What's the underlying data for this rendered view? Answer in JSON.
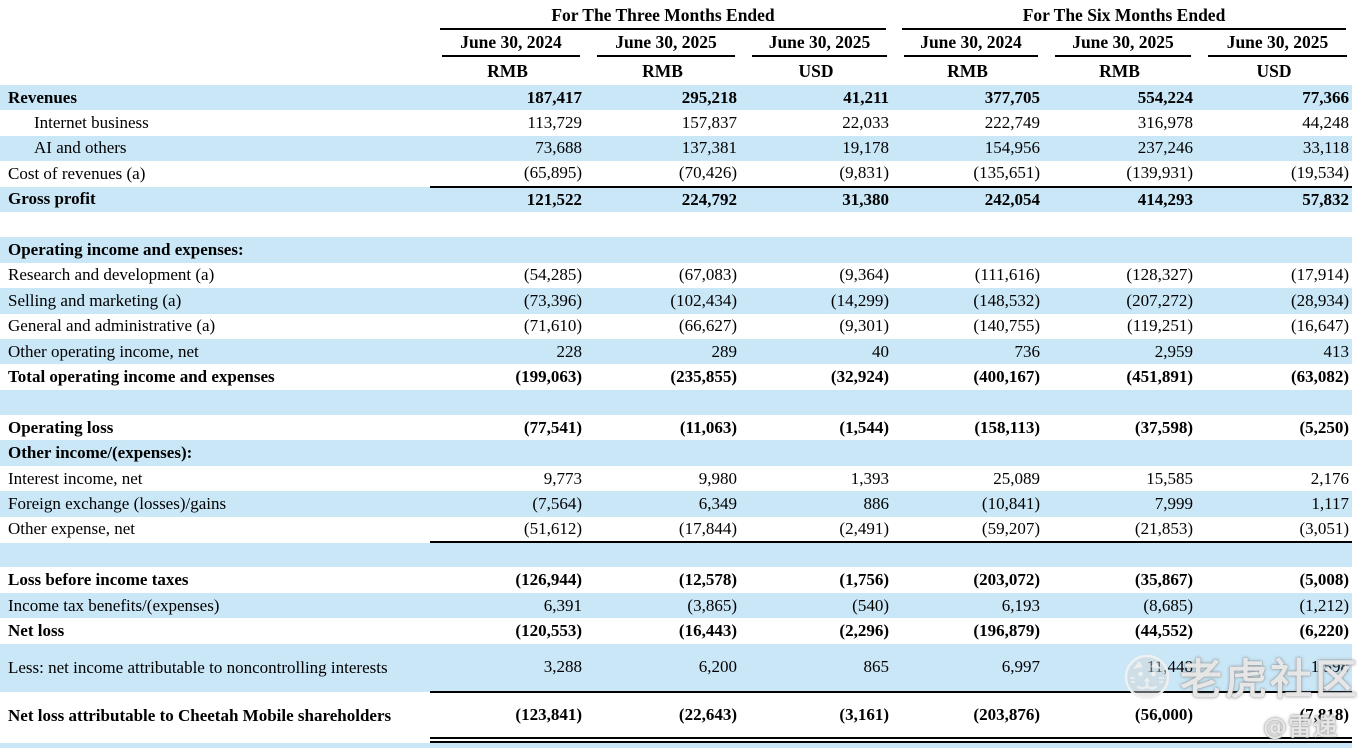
{
  "colors": {
    "background": "#ffffff",
    "row_stripe": "#cae7f7",
    "text": "#000000",
    "rule": "#000000"
  },
  "table": {
    "group_headers": [
      {
        "label": "For The Three Months Ended",
        "span": 3
      },
      {
        "label": "For The Six Months Ended",
        "span": 3
      }
    ],
    "date_headers": [
      "June 30, 2024",
      "June 30, 2025",
      "June 30, 2025",
      "June 30, 2024",
      "June 30, 2025",
      "June 30, 2025"
    ],
    "currency_headers": [
      "RMB",
      "RMB",
      "USD",
      "RMB",
      "RMB",
      "USD"
    ],
    "rows": [
      {
        "label": "Revenues",
        "bold": true,
        "shaded": true,
        "values": [
          "187,417",
          "295,218",
          "41,211",
          "377,705",
          "554,224",
          "77,366"
        ]
      },
      {
        "label": "Internet business",
        "indent": 1,
        "shaded": false,
        "values": [
          "113,729",
          "157,837",
          "22,033",
          "222,749",
          "316,978",
          "44,248"
        ]
      },
      {
        "label": "AI and others",
        "indent": 1,
        "shaded": true,
        "values": [
          "73,688",
          "137,381",
          "19,178",
          "154,956",
          "237,246",
          "33,118"
        ]
      },
      {
        "label": "Cost of revenues (a)",
        "shaded": false,
        "rule": "single",
        "values": [
          "(65,895)",
          "(70,426)",
          "(9,831)",
          "(135,651)",
          "(139,931)",
          "(19,534)"
        ]
      },
      {
        "label": "Gross profit",
        "bold": true,
        "shaded": true,
        "values": [
          "121,522",
          "224,792",
          "31,380",
          "242,054",
          "414,293",
          "57,832"
        ]
      },
      {
        "spacer": true,
        "shaded": false
      },
      {
        "label": "Operating income and expenses:",
        "bold": true,
        "shaded": true,
        "values": [
          "",
          "",
          "",
          "",
          "",
          ""
        ]
      },
      {
        "label": "Research and development (a)",
        "shaded": false,
        "values": [
          "(54,285)",
          "(67,083)",
          "(9,364)",
          "(111,616)",
          "(128,327)",
          "(17,914)"
        ]
      },
      {
        "label": "Selling and marketing (a)",
        "shaded": true,
        "values": [
          "(73,396)",
          "(102,434)",
          "(14,299)",
          "(148,532)",
          "(207,272)",
          "(28,934)"
        ]
      },
      {
        "label": "General and administrative (a)",
        "shaded": false,
        "values": [
          "(71,610)",
          "(66,627)",
          "(9,301)",
          "(140,755)",
          "(119,251)",
          "(16,647)"
        ]
      },
      {
        "label": "Other operating income, net",
        "shaded": true,
        "values": [
          "228",
          "289",
          "40",
          "736",
          "2,959",
          "413"
        ]
      },
      {
        "label": "Total operating income and expenses",
        "bold": true,
        "shaded": false,
        "values": [
          "(199,063)",
          "(235,855)",
          "(32,924)",
          "(400,167)",
          "(451,891)",
          "(63,082)"
        ]
      },
      {
        "spacer": true,
        "shaded": true
      },
      {
        "label": "Operating loss",
        "bold": true,
        "shaded": false,
        "values": [
          "(77,541)",
          "(11,063)",
          "(1,544)",
          "(158,113)",
          "(37,598)",
          "(5,250)"
        ]
      },
      {
        "label": "Other income/(expenses):",
        "bold": true,
        "shaded": true,
        "values": [
          "",
          "",
          "",
          "",
          "",
          ""
        ]
      },
      {
        "label": "Interest income, net",
        "shaded": false,
        "values": [
          "9,773",
          "9,980",
          "1,393",
          "25,089",
          "15,585",
          "2,176"
        ]
      },
      {
        "label": "Foreign exchange (losses)/gains",
        "shaded": true,
        "values": [
          "(7,564)",
          "6,349",
          "886",
          "(10,841)",
          "7,999",
          "1,117"
        ]
      },
      {
        "label": "Other expense, net",
        "shaded": false,
        "rule": "single",
        "values": [
          "(51,612)",
          "(17,844)",
          "(2,491)",
          "(59,207)",
          "(21,853)",
          "(3,051)"
        ]
      },
      {
        "spacer": true,
        "shaded": true
      },
      {
        "label": "Loss before income taxes",
        "bold": true,
        "shaded": false,
        "values": [
          "(126,944)",
          "(12,578)",
          "(1,756)",
          "(203,072)",
          "(35,867)",
          "(5,008)"
        ]
      },
      {
        "label": "Income tax benefits/(expenses)",
        "shaded": true,
        "values": [
          "6,391",
          "(3,865)",
          "(540)",
          "6,193",
          "(8,685)",
          "(1,212)"
        ]
      },
      {
        "label": "Net loss",
        "bold": true,
        "shaded": false,
        "values": [
          "(120,553)",
          "(16,443)",
          "(2,296)",
          "(196,879)",
          "(44,552)",
          "(6,220)"
        ]
      },
      {
        "label": "Less: net income attributable to noncontrolling interests",
        "shaded": true,
        "tall": true,
        "rule": "single",
        "values": [
          "3,288",
          "6,200",
          "865",
          "6,997",
          "11,448",
          "1,598"
        ]
      },
      {
        "label": "Net loss attributable to Cheetah Mobile shareholders",
        "bold": true,
        "shaded": false,
        "tall": true,
        "rule": "double",
        "values": [
          "(123,841)",
          "(22,643)",
          "(3,161)",
          "(203,876)",
          "(56,000)",
          "(7,818)"
        ]
      },
      {
        "spacer": true,
        "shaded": true,
        "height": 8
      }
    ]
  },
  "watermark": {
    "brand_text": "老虎社区",
    "handle_text": "@雷递"
  }
}
